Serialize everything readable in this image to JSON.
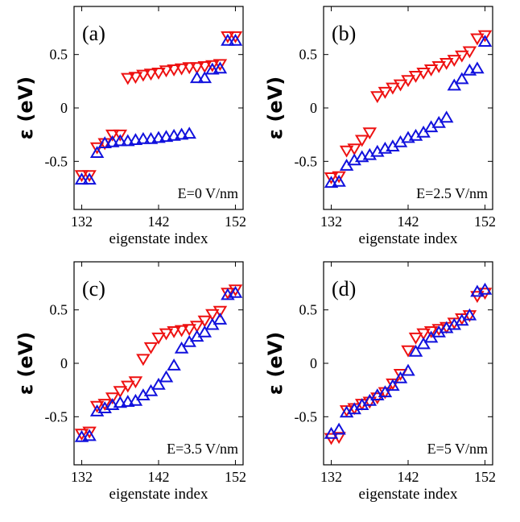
{
  "colors": {
    "red": "#ee1111",
    "blue": "#1111dd",
    "axis": "#000000"
  },
  "chart_data": [
    {
      "type": "scatter",
      "panel_label": "(a)",
      "field_label": "E=0 V/nm",
      "xlabel": "eigenstate index",
      "ylabel": "ε (eV)",
      "xlim": [
        131,
        153
      ],
      "ylim": [
        -0.95,
        0.95
      ],
      "xticks": [
        132,
        142,
        152
      ],
      "yticks": [
        -0.5,
        0,
        0.5
      ],
      "ytick_labels": [
        "-0.5",
        "0",
        "0.5"
      ],
      "x": [
        132,
        133,
        134,
        135,
        136,
        137,
        138,
        139,
        140,
        141,
        142,
        143,
        144,
        145,
        146,
        147,
        148,
        149,
        150,
        151,
        152
      ],
      "series": [
        {
          "marker": "triangle-down",
          "color": "red",
          "values": [
            -0.63,
            -0.63,
            -0.37,
            -0.33,
            -0.25,
            -0.25,
            0.28,
            0.29,
            0.31,
            0.32,
            0.33,
            0.35,
            0.36,
            0.37,
            0.38,
            0.38,
            0.39,
            0.4,
            0.41,
            0.67,
            0.67
          ]
        },
        {
          "marker": "triangle-up",
          "color": "blue",
          "values": [
            -0.67,
            -0.67,
            -0.42,
            -0.33,
            -0.32,
            -0.31,
            -0.31,
            -0.3,
            -0.29,
            -0.29,
            -0.28,
            -0.27,
            -0.26,
            -0.25,
            -0.24,
            0.28,
            0.28,
            0.36,
            0.37,
            0.63,
            0.63
          ]
        }
      ]
    },
    {
      "type": "scatter",
      "panel_label": "(b)",
      "field_label": "E=2.5 V/nm",
      "xlabel": "eigenstate index",
      "ylabel": "ε (eV)",
      "xlim": [
        131,
        153
      ],
      "ylim": [
        -0.95,
        0.95
      ],
      "xticks": [
        132,
        142,
        152
      ],
      "yticks": [
        -0.5,
        0,
        0.5
      ],
      "ytick_labels": [
        "-0.5",
        "0",
        "0.5"
      ],
      "x": [
        132,
        133,
        134,
        135,
        136,
        137,
        138,
        139,
        140,
        141,
        142,
        143,
        144,
        145,
        146,
        147,
        148,
        149,
        150,
        151,
        152
      ],
      "series": [
        {
          "marker": "triangle-down",
          "color": "red",
          "values": [
            -0.65,
            -0.64,
            -0.4,
            -0.38,
            -0.3,
            -0.23,
            0.11,
            0.15,
            0.19,
            0.22,
            0.26,
            0.3,
            0.33,
            0.36,
            0.39,
            0.42,
            0.45,
            0.49,
            0.53,
            0.65,
            0.68
          ]
        },
        {
          "marker": "triangle-up",
          "color": "blue",
          "values": [
            -0.7,
            -0.69,
            -0.54,
            -0.49,
            -0.46,
            -0.44,
            -0.41,
            -0.38,
            -0.36,
            -0.32,
            -0.28,
            -0.26,
            -0.23,
            -0.18,
            -0.14,
            -0.09,
            0.21,
            0.27,
            0.35,
            0.37,
            0.62
          ]
        }
      ]
    },
    {
      "type": "scatter",
      "panel_label": "(c)",
      "field_label": "E=3.5 V/nm",
      "xlabel": "eigenstate index",
      "ylabel": "ε (eV)",
      "xlim": [
        131,
        153
      ],
      "ylim": [
        -0.95,
        0.95
      ],
      "xticks": [
        132,
        142,
        152
      ],
      "yticks": [
        -0.5,
        0,
        0.5
      ],
      "ytick_labels": [
        "-0.5",
        "0",
        "0.5"
      ],
      "x": [
        132,
        133,
        134,
        135,
        136,
        137,
        138,
        139,
        140,
        141,
        142,
        143,
        144,
        145,
        146,
        147,
        148,
        149,
        150,
        151,
        152
      ],
      "series": [
        {
          "marker": "triangle-down",
          "color": "red",
          "values": [
            -0.66,
            -0.64,
            -0.4,
            -0.38,
            -0.32,
            -0.26,
            -0.21,
            -0.17,
            0.04,
            0.15,
            0.24,
            0.28,
            0.3,
            0.31,
            0.32,
            0.35,
            0.4,
            0.46,
            0.49,
            0.66,
            0.69
          ]
        },
        {
          "marker": "triangle-up",
          "color": "blue",
          "values": [
            -0.69,
            -0.68,
            -0.45,
            -0.42,
            -0.39,
            -0.37,
            -0.36,
            -0.35,
            -0.3,
            -0.26,
            -0.2,
            -0.13,
            -0.02,
            0.14,
            0.2,
            0.25,
            0.29,
            0.36,
            0.41,
            0.64,
            0.66
          ]
        }
      ]
    },
    {
      "type": "scatter",
      "panel_label": "(d)",
      "field_label": "E=5 V/nm",
      "xlabel": "eigenstate index",
      "ylabel": "ε (eV)",
      "xlim": [
        131,
        153
      ],
      "ylim": [
        -0.95,
        0.95
      ],
      "xticks": [
        132,
        142,
        152
      ],
      "yticks": [
        -0.5,
        0,
        0.5
      ],
      "ytick_labels": [
        "-0.5",
        "0",
        "0.5"
      ],
      "x": [
        132,
        133,
        134,
        135,
        136,
        137,
        138,
        139,
        140,
        141,
        142,
        143,
        144,
        145,
        146,
        147,
        148,
        149,
        150,
        151,
        152
      ],
      "series": [
        {
          "marker": "triangle-down",
          "color": "red",
          "values": [
            -0.7,
            -0.69,
            -0.44,
            -0.42,
            -0.38,
            -0.36,
            -0.32,
            -0.27,
            -0.19,
            -0.1,
            0.12,
            0.24,
            0.28,
            0.3,
            0.32,
            0.34,
            0.38,
            0.42,
            0.45,
            0.63,
            0.66
          ]
        },
        {
          "marker": "triangle-up",
          "color": "blue",
          "values": [
            -0.66,
            -0.62,
            -0.46,
            -0.43,
            -0.39,
            -0.35,
            -0.3,
            -0.27,
            -0.21,
            -0.14,
            -0.07,
            0.11,
            0.18,
            0.24,
            0.29,
            0.33,
            0.36,
            0.4,
            0.45,
            0.67,
            0.69
          ]
        }
      ]
    }
  ]
}
